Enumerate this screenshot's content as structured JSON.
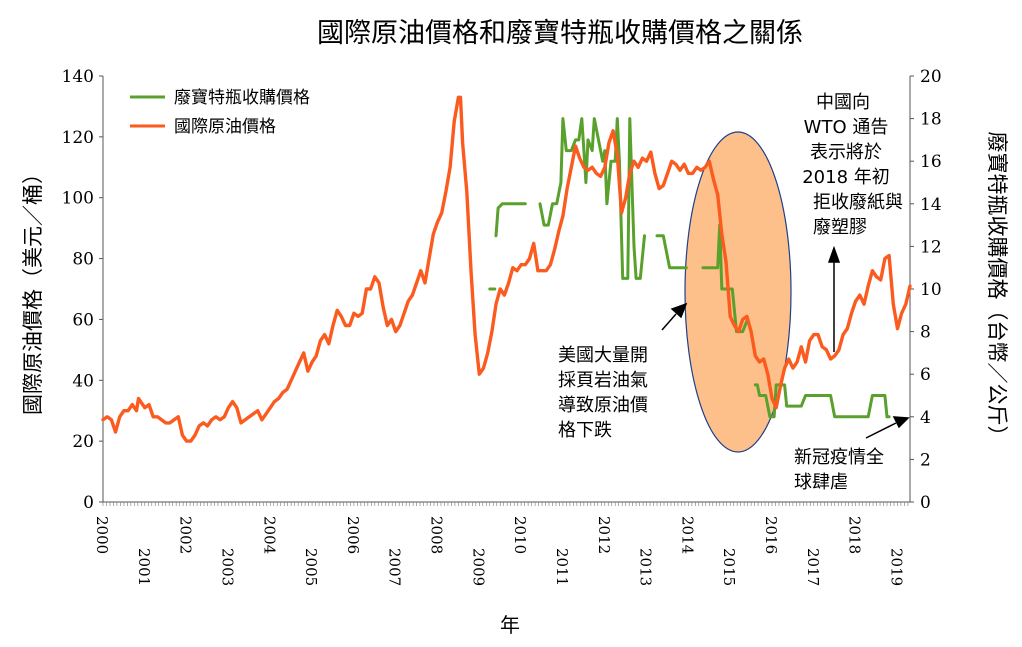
{
  "chart_data": {
    "type": "line",
    "title": "國際原油價格和廢寶特瓶收購價格之關係",
    "xlabel": "年",
    "ylabel_left": "國際原油價格（美元／桶）",
    "ylabel_right": "廢寶特瓶收購價格（台幣／公斤）",
    "ylim_left": [
      0,
      140
    ],
    "ylim_right": [
      0,
      20
    ],
    "yticks_left": [
      "0",
      "20",
      "40",
      "60",
      "80",
      "100",
      "120",
      "140"
    ],
    "yticks_right": [
      "0",
      "2",
      "4",
      "6",
      "8",
      "10",
      "12",
      "14",
      "16",
      "18",
      "20"
    ],
    "xlim": [
      2000,
      2019.3
    ],
    "xticks": [
      "2000",
      "2001",
      "2002",
      "2003",
      "2004",
      "2005",
      "2006",
      "2007",
      "2008",
      "2009",
      "2010",
      "2011",
      "2012",
      "2013",
      "2014",
      "2015",
      "2016",
      "2017",
      "2018",
      "2019"
    ],
    "grid": false,
    "legend_position": "top-left",
    "series": [
      {
        "name": "廢寶特瓶收購價格",
        "color": "#5aa02c",
        "axis": "right",
        "points": [
          [
            2009.25,
            10
          ],
          [
            2009.33,
            10
          ],
          [
            2009.37,
            10
          ],
          [
            2009.37,
            null
          ],
          [
            2009.4,
            12.5
          ],
          [
            2009.45,
            13.8
          ],
          [
            2009.55,
            14
          ],
          [
            2010.1,
            14
          ],
          [
            2010.1,
            null
          ],
          [
            2010.45,
            14
          ],
          [
            2010.55,
            13
          ],
          [
            2010.65,
            13
          ],
          [
            2010.75,
            14
          ],
          [
            2010.85,
            14
          ],
          [
            2010.95,
            15
          ],
          [
            2011.0,
            18
          ],
          [
            2011.08,
            16.5
          ],
          [
            2011.2,
            16.5
          ],
          [
            2011.3,
            17
          ],
          [
            2011.38,
            17
          ],
          [
            2011.45,
            18
          ],
          [
            2011.5,
            16.5
          ],
          [
            2011.55,
            15
          ],
          [
            2011.6,
            17
          ],
          [
            2011.7,
            16.5
          ],
          [
            2011.75,
            18
          ],
          [
            2011.85,
            17
          ],
          [
            2011.95,
            16
          ],
          [
            2012.0,
            16.5
          ],
          [
            2012.05,
            14
          ],
          [
            2012.15,
            16
          ],
          [
            2012.25,
            16
          ],
          [
            2012.3,
            18
          ],
          [
            2012.35,
            16
          ],
          [
            2012.43,
            10.5
          ],
          [
            2012.55,
            10.5
          ],
          [
            2012.6,
            18
          ],
          [
            2012.7,
            12
          ],
          [
            2012.75,
            10.5
          ],
          [
            2012.85,
            10.5
          ],
          [
            2012.95,
            12.5
          ],
          [
            2012.95,
            null
          ],
          [
            2013.25,
            12.5
          ],
          [
            2013.4,
            12.5
          ],
          [
            2013.45,
            12
          ],
          [
            2013.55,
            11
          ],
          [
            2013.95,
            11
          ],
          [
            2013.95,
            null
          ],
          [
            2014.35,
            11
          ],
          [
            2014.7,
            11
          ],
          [
            2014.75,
            13
          ],
          [
            2014.8,
            10
          ],
          [
            2014.95,
            10
          ],
          [
            2015.05,
            10
          ],
          [
            2015.1,
            9
          ],
          [
            2015.15,
            8
          ],
          [
            2015.3,
            8
          ],
          [
            2015.4,
            8.5
          ],
          [
            2015.4,
            null
          ],
          [
            2015.6,
            5.5
          ],
          [
            2015.65,
            5.5
          ],
          [
            2015.7,
            5
          ],
          [
            2015.85,
            5
          ],
          [
            2015.95,
            4
          ],
          [
            2016.05,
            4
          ],
          [
            2016.1,
            5.5
          ],
          [
            2016.3,
            5.5
          ],
          [
            2016.35,
            4.5
          ],
          [
            2016.7,
            4.5
          ],
          [
            2016.8,
            5
          ],
          [
            2017.4,
            5
          ],
          [
            2017.5,
            4
          ],
          [
            2018.3,
            4
          ],
          [
            2018.4,
            5
          ],
          [
            2018.7,
            5
          ],
          [
            2018.75,
            4
          ],
          [
            2018.8,
            4
          ]
        ]
      },
      {
        "name": "國際原油價格",
        "color": "#fb5b1e",
        "axis": "left",
        "points": [
          [
            2000.0,
            27
          ],
          [
            2000.1,
            28
          ],
          [
            2000.2,
            27
          ],
          [
            2000.3,
            23
          ],
          [
            2000.4,
            28
          ],
          [
            2000.5,
            30
          ],
          [
            2000.6,
            30
          ],
          [
            2000.7,
            32
          ],
          [
            2000.8,
            30
          ],
          [
            2000.85,
            34
          ],
          [
            2000.95,
            32
          ],
          [
            2001.0,
            31
          ],
          [
            2001.1,
            32
          ],
          [
            2001.2,
            28
          ],
          [
            2001.3,
            28
          ],
          [
            2001.4,
            27
          ],
          [
            2001.5,
            26
          ],
          [
            2001.6,
            26
          ],
          [
            2001.7,
            27
          ],
          [
            2001.8,
            28
          ],
          [
            2001.9,
            22
          ],
          [
            2002.0,
            20
          ],
          [
            2002.1,
            20
          ],
          [
            2002.2,
            22
          ],
          [
            2002.3,
            25
          ],
          [
            2002.4,
            26
          ],
          [
            2002.5,
            25
          ],
          [
            2002.6,
            27
          ],
          [
            2002.7,
            28
          ],
          [
            2002.8,
            27
          ],
          [
            2002.9,
            28
          ],
          [
            2003.0,
            31
          ],
          [
            2003.1,
            33
          ],
          [
            2003.2,
            31
          ],
          [
            2003.3,
            26
          ],
          [
            2003.4,
            27
          ],
          [
            2003.5,
            28
          ],
          [
            2003.6,
            29
          ],
          [
            2003.7,
            30
          ],
          [
            2003.8,
            27
          ],
          [
            2003.9,
            29
          ],
          [
            2004.0,
            31
          ],
          [
            2004.1,
            33
          ],
          [
            2004.2,
            34
          ],
          [
            2004.3,
            36
          ],
          [
            2004.4,
            37
          ],
          [
            2004.5,
            40
          ],
          [
            2004.6,
            43
          ],
          [
            2004.7,
            46
          ],
          [
            2004.8,
            49
          ],
          [
            2004.9,
            43
          ],
          [
            2005.0,
            46
          ],
          [
            2005.1,
            48
          ],
          [
            2005.2,
            53
          ],
          [
            2005.3,
            55
          ],
          [
            2005.4,
            52
          ],
          [
            2005.5,
            58
          ],
          [
            2005.6,
            63
          ],
          [
            2005.7,
            61
          ],
          [
            2005.8,
            58
          ],
          [
            2005.9,
            58
          ],
          [
            2006.0,
            62
          ],
          [
            2006.1,
            61
          ],
          [
            2006.2,
            62
          ],
          [
            2006.3,
            70
          ],
          [
            2006.4,
            70
          ],
          [
            2006.5,
            74
          ],
          [
            2006.6,
            72
          ],
          [
            2006.7,
            64
          ],
          [
            2006.8,
            58
          ],
          [
            2006.9,
            60
          ],
          [
            2007.0,
            56
          ],
          [
            2007.1,
            58
          ],
          [
            2007.2,
            62
          ],
          [
            2007.3,
            66
          ],
          [
            2007.4,
            68
          ],
          [
            2007.5,
            72
          ],
          [
            2007.6,
            76
          ],
          [
            2007.7,
            72
          ],
          [
            2007.8,
            80
          ],
          [
            2007.9,
            88
          ],
          [
            2008.0,
            92
          ],
          [
            2008.1,
            95
          ],
          [
            2008.2,
            102
          ],
          [
            2008.3,
            110
          ],
          [
            2008.4,
            125
          ],
          [
            2008.5,
            133
          ],
          [
            2008.55,
            133
          ],
          [
            2008.6,
            118
          ],
          [
            2008.7,
            102
          ],
          [
            2008.8,
            76
          ],
          [
            2008.9,
            55
          ],
          [
            2009.0,
            42
          ],
          [
            2009.1,
            44
          ],
          [
            2009.2,
            49
          ],
          [
            2009.3,
            56
          ],
          [
            2009.4,
            65
          ],
          [
            2009.5,
            70
          ],
          [
            2009.6,
            68
          ],
          [
            2009.7,
            72
          ],
          [
            2009.8,
            77
          ],
          [
            2009.9,
            76
          ],
          [
            2010.0,
            78
          ],
          [
            2010.1,
            78
          ],
          [
            2010.2,
            80
          ],
          [
            2010.3,
            85
          ],
          [
            2010.4,
            76
          ],
          [
            2010.5,
            76
          ],
          [
            2010.6,
            76
          ],
          [
            2010.7,
            78
          ],
          [
            2010.8,
            83
          ],
          [
            2010.9,
            89
          ],
          [
            2011.0,
            94
          ],
          [
            2011.1,
            103
          ],
          [
            2011.2,
            110
          ],
          [
            2011.3,
            117
          ],
          [
            2011.4,
            113
          ],
          [
            2011.5,
            110
          ],
          [
            2011.6,
            109
          ],
          [
            2011.7,
            110
          ],
          [
            2011.8,
            108
          ],
          [
            2011.9,
            107
          ],
          [
            2012.0,
            110
          ],
          [
            2012.1,
            118
          ],
          [
            2012.2,
            122
          ],
          [
            2012.3,
            114
          ],
          [
            2012.4,
            95
          ],
          [
            2012.5,
            100
          ],
          [
            2012.6,
            108
          ],
          [
            2012.7,
            112
          ],
          [
            2012.8,
            110
          ],
          [
            2012.9,
            113
          ],
          [
            2013.0,
            112
          ],
          [
            2013.1,
            115
          ],
          [
            2013.2,
            108
          ],
          [
            2013.3,
            103
          ],
          [
            2013.4,
            104
          ],
          [
            2013.5,
            108
          ],
          [
            2013.6,
            112
          ],
          [
            2013.7,
            111
          ],
          [
            2013.8,
            109
          ],
          [
            2013.9,
            111
          ],
          [
            2014.0,
            108
          ],
          [
            2014.1,
            108
          ],
          [
            2014.2,
            110
          ],
          [
            2014.3,
            109
          ],
          [
            2014.4,
            110
          ],
          [
            2014.5,
            112
          ],
          [
            2014.6,
            106
          ],
          [
            2014.7,
            101
          ],
          [
            2014.8,
            88
          ],
          [
            2014.9,
            79
          ],
          [
            2015.0,
            61
          ],
          [
            2015.1,
            58
          ],
          [
            2015.2,
            56
          ],
          [
            2015.3,
            60
          ],
          [
            2015.4,
            61
          ],
          [
            2015.5,
            56
          ],
          [
            2015.6,
            48
          ],
          [
            2015.7,
            46
          ],
          [
            2015.8,
            47
          ],
          [
            2015.9,
            42
          ],
          [
            2016.0,
            34
          ],
          [
            2016.1,
            31
          ],
          [
            2016.2,
            38
          ],
          [
            2016.3,
            44
          ],
          [
            2016.4,
            47
          ],
          [
            2016.5,
            44
          ],
          [
            2016.6,
            46
          ],
          [
            2016.7,
            51
          ],
          [
            2016.8,
            46
          ],
          [
            2016.9,
            53
          ],
          [
            2017.0,
            55
          ],
          [
            2017.1,
            55
          ],
          [
            2017.2,
            51
          ],
          [
            2017.3,
            50
          ],
          [
            2017.4,
            47
          ],
          [
            2017.5,
            48
          ],
          [
            2017.6,
            50
          ],
          [
            2017.7,
            55
          ],
          [
            2017.8,
            57
          ],
          [
            2017.9,
            62
          ],
          [
            2018.0,
            66
          ],
          [
            2018.1,
            68
          ],
          [
            2018.2,
            65
          ],
          [
            2018.3,
            71
          ],
          [
            2018.4,
            76
          ],
          [
            2018.5,
            74
          ],
          [
            2018.6,
            73
          ],
          [
            2018.7,
            80
          ],
          [
            2018.8,
            81
          ],
          [
            2018.9,
            65
          ],
          [
            2019.0,
            57
          ],
          [
            2019.1,
            62
          ],
          [
            2019.2,
            65
          ],
          [
            2019.3,
            71
          ]
        ]
      }
    ],
    "annotations": [
      {
        "lines": [
          "中國向",
          "WTO 通告",
          "表示將於",
          "2018 年初",
          "拒收廢紙與",
          "廢塑膠"
        ]
      },
      {
        "lines": [
          "美國大量開",
          "採頁岩油氣",
          "導致原油價",
          "格下跌"
        ]
      },
      {
        "lines": [
          "新冠疫情全",
          "球肆虐"
        ]
      }
    ],
    "highlight_color": "#fdc08a"
  }
}
